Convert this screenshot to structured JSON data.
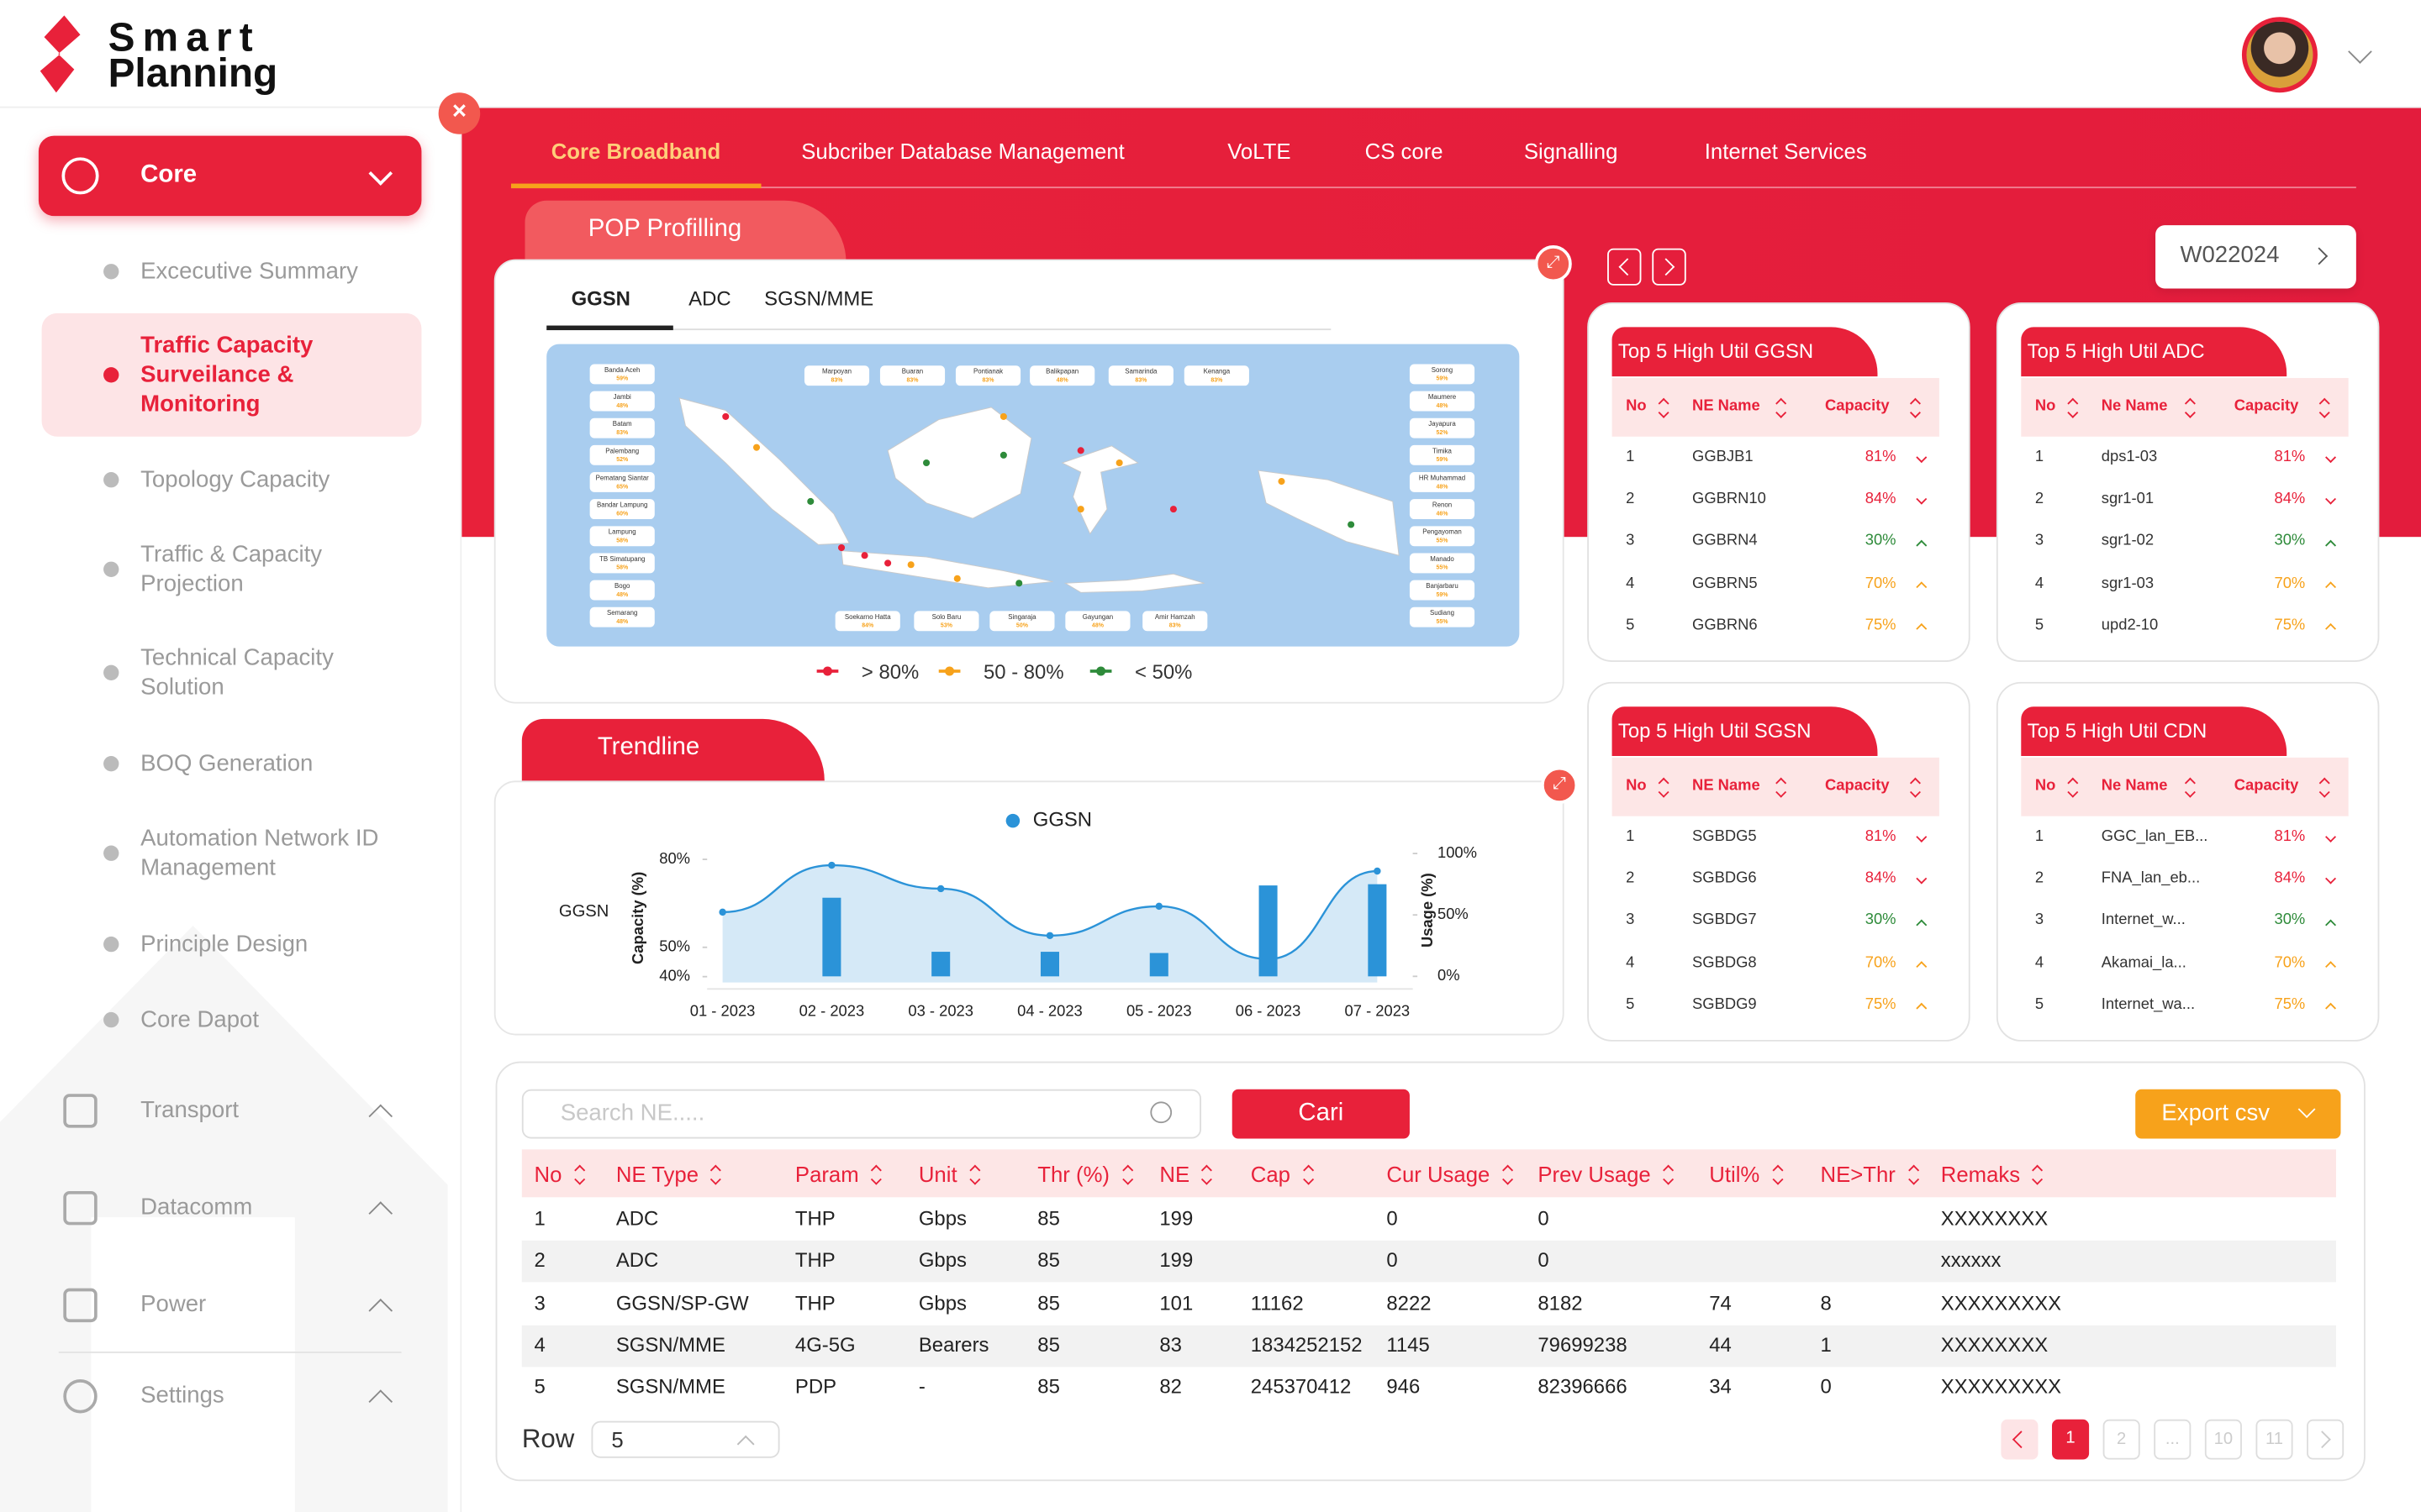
{
  "brand": {
    "name_top": "Smart",
    "name_bottom": "Planning"
  },
  "sidebar": {
    "menu": "Core",
    "items": [
      "Excecutive Summary",
      "Traffic Capacity Surveilance & Monitoring",
      "Topology Capacity",
      "Traffic & Capacity Projection",
      "Technical Capacity Solution",
      "BOQ Generation",
      "Automation Network ID Management",
      "Principle Design",
      "Core Dapot"
    ],
    "active_item": 1,
    "groups": [
      "Transport",
      "Datacomm",
      "Power",
      "Settings"
    ]
  },
  "tabs": {
    "items": [
      "Core Broadband",
      "Subcriber Database Management",
      "VoLTE",
      "CS core",
      "Signalling",
      "Internet Services"
    ],
    "active": 0
  },
  "pop_profiling": {
    "title": "POP Profilling",
    "tabs": [
      "GGSN",
      "ADC",
      "SGSN/MME"
    ],
    "active_tab": 0,
    "map_labels": {
      "left": [
        [
          "Banda Aceh",
          "59%"
        ],
        [
          "Jambi",
          "48%"
        ],
        [
          "Batam",
          "83%"
        ],
        [
          "Palembang",
          "52%"
        ],
        [
          "Pematang Siantar",
          "65%"
        ],
        [
          "Bandar Lampung",
          "60%"
        ],
        [
          "Lampung",
          "58%"
        ],
        [
          "TB Simatupang",
          "58%"
        ],
        [
          "Bogo",
          "48%"
        ],
        [
          "Semarang",
          "48%"
        ]
      ],
      "top": [
        [
          "Marpoyan",
          "83%"
        ],
        [
          "Buaran",
          "83%"
        ],
        [
          "Pontianak",
          "83%"
        ],
        [
          "Balikpapan",
          "48%"
        ],
        [
          "Samarinda",
          "83%"
        ],
        [
          "Kenanga",
          "83%"
        ]
      ],
      "right": [
        [
          "Sorong",
          "59%"
        ],
        [
          "Maumere",
          "48%"
        ],
        [
          "Jayapura",
          "52%"
        ],
        [
          "Timika",
          "59%"
        ],
        [
          "HR Muhammad",
          "48%"
        ],
        [
          "Renon",
          "46%"
        ],
        [
          "Pengayoman",
          "55%"
        ],
        [
          "Manado",
          "55%"
        ],
        [
          "Banjarbaru",
          "59%"
        ],
        [
          "Sudiang",
          "55%"
        ]
      ],
      "bottom": [
        [
          "Soekarno Hatta",
          "84%"
        ],
        [
          "Solo Baru",
          "53%"
        ],
        [
          "Singaraja",
          "50%"
        ],
        [
          "Gayungan",
          "48%"
        ],
        [
          "Amir Hamzah",
          "83%"
        ]
      ]
    },
    "legend": [
      "> 80%",
      "50 - 80%",
      "< 50%"
    ]
  },
  "week": "W022024",
  "top5": [
    {
      "title": "Top 5  High Util GGSN",
      "columns": [
        "No",
        "NE Name",
        "Capacity"
      ],
      "rows": [
        [
          1,
          "GGBJB1",
          "81%"
        ],
        [
          2,
          "GGBRN10",
          "84%"
        ],
        [
          3,
          "GGBRN4",
          "30%"
        ],
        [
          4,
          "GGBRN5",
          "70%"
        ],
        [
          5,
          "GGBRN6",
          "75%"
        ]
      ]
    },
    {
      "title": "Top 5  High Util ADC",
      "columns": [
        "No",
        "Ne Name",
        "Capacity"
      ],
      "rows": [
        [
          1,
          "dps1-03",
          "81%"
        ],
        [
          2,
          "sgr1-01",
          "84%"
        ],
        [
          3,
          "sgr1-02",
          "30%"
        ],
        [
          4,
          "sgr1-03",
          "70%"
        ],
        [
          5,
          "upd2-10",
          "75%"
        ]
      ]
    },
    {
      "title": "Top 5  High Util SGSN",
      "columns": [
        "No",
        "NE Name",
        "Capacity"
      ],
      "rows": [
        [
          1,
          "SGBDG5",
          "81%"
        ],
        [
          2,
          "SGBDG6",
          "84%"
        ],
        [
          3,
          "SGBDG7",
          "30%"
        ],
        [
          4,
          "SGBDG8",
          "70%"
        ],
        [
          5,
          "SGBDG9",
          "75%"
        ]
      ]
    },
    {
      "title": "Top 5  High Util CDN",
      "columns": [
        "No",
        "Ne Name",
        "Capacity"
      ],
      "rows": [
        [
          1,
          "GGC_lan_EB...",
          "81%"
        ],
        [
          2,
          "FNA_lan_eb...",
          "84%"
        ],
        [
          3,
          "Internet_w...",
          "30%"
        ],
        [
          4,
          "Akamai_la...",
          "70%"
        ],
        [
          5,
          "Internet_wa...",
          "75%"
        ]
      ]
    }
  ],
  "trendline": {
    "title": "Trendline",
    "chart_data": {
      "type": "bar-line",
      "series_label": "GGSN",
      "categories": [
        "01 - 2023",
        "02 - 2023",
        "03 - 2023",
        "04 - 2023",
        "05 - 2023",
        "06 - 2023",
        "07 - 2023"
      ],
      "series": [
        {
          "name": "GGSN",
          "kind": "line",
          "color": "#2b93d8",
          "values": [
            62,
            78,
            70,
            54,
            64,
            46,
            76
          ]
        },
        {
          "kind": "bar",
          "axis": "y2",
          "color": "#2b93d8",
          "values": [
            null,
            64,
            20,
            20,
            19,
            74,
            75
          ]
        }
      ],
      "ylabel": "Capacity (%)",
      "y2label": "Usage (%)",
      "ylim": [
        38,
        82
      ],
      "yticks": [
        {
          "value": 40,
          "label": "40%"
        },
        {
          "value": 50,
          "label": "50%"
        },
        {
          "value": 80,
          "label": "80%"
        }
      ],
      "y2lim": [
        -5,
        100
      ],
      "y2ticks": [
        {
          "value": 0,
          "label": "0%"
        },
        {
          "value": 50,
          "label": "50%"
        },
        {
          "value": 100,
          "label": "100%"
        }
      ]
    }
  },
  "ne_table": {
    "search_placeholder": "Search NE.....",
    "search_button": "Cari",
    "export_button": "Export csv",
    "columns": [
      "No",
      "NE Type",
      "Param",
      "Unit",
      "Thr (%)",
      "NE",
      "Cap",
      "Cur Usage",
      "Prev Usage",
      "Util%",
      "NE>Thr",
      "Remaks"
    ],
    "rows": [
      [
        1,
        "ADC",
        "THP",
        "Gbps",
        85,
        199,
        null,
        0,
        0,
        null,
        null,
        "XXXXXXXX"
      ],
      [
        2,
        "ADC",
        "THP",
        "Gbps",
        85,
        199,
        null,
        0,
        0,
        null,
        null,
        "xxxxxx"
      ],
      [
        3,
        "GGSN/SP-GW",
        "THP",
        "Gbps",
        85,
        101,
        11162,
        8222,
        8182,
        74,
        8,
        "XXXXXXXXX"
      ],
      [
        4,
        "SGSN/MME",
        "4G-5G",
        "Bearers",
        85,
        83,
        1834252152,
        1145,
        79699238,
        44,
        1,
        "XXXXXXXX"
      ],
      [
        5,
        "SGSN/MME",
        "PDP",
        "-",
        85,
        82,
        245370412,
        946,
        82396666,
        34,
        0,
        "XXXXXXXXX"
      ]
    ],
    "row_label": "Row",
    "row_count": "5",
    "pages": [
      "1",
      "2",
      "...",
      "10",
      "11"
    ],
    "active_page": 0
  }
}
